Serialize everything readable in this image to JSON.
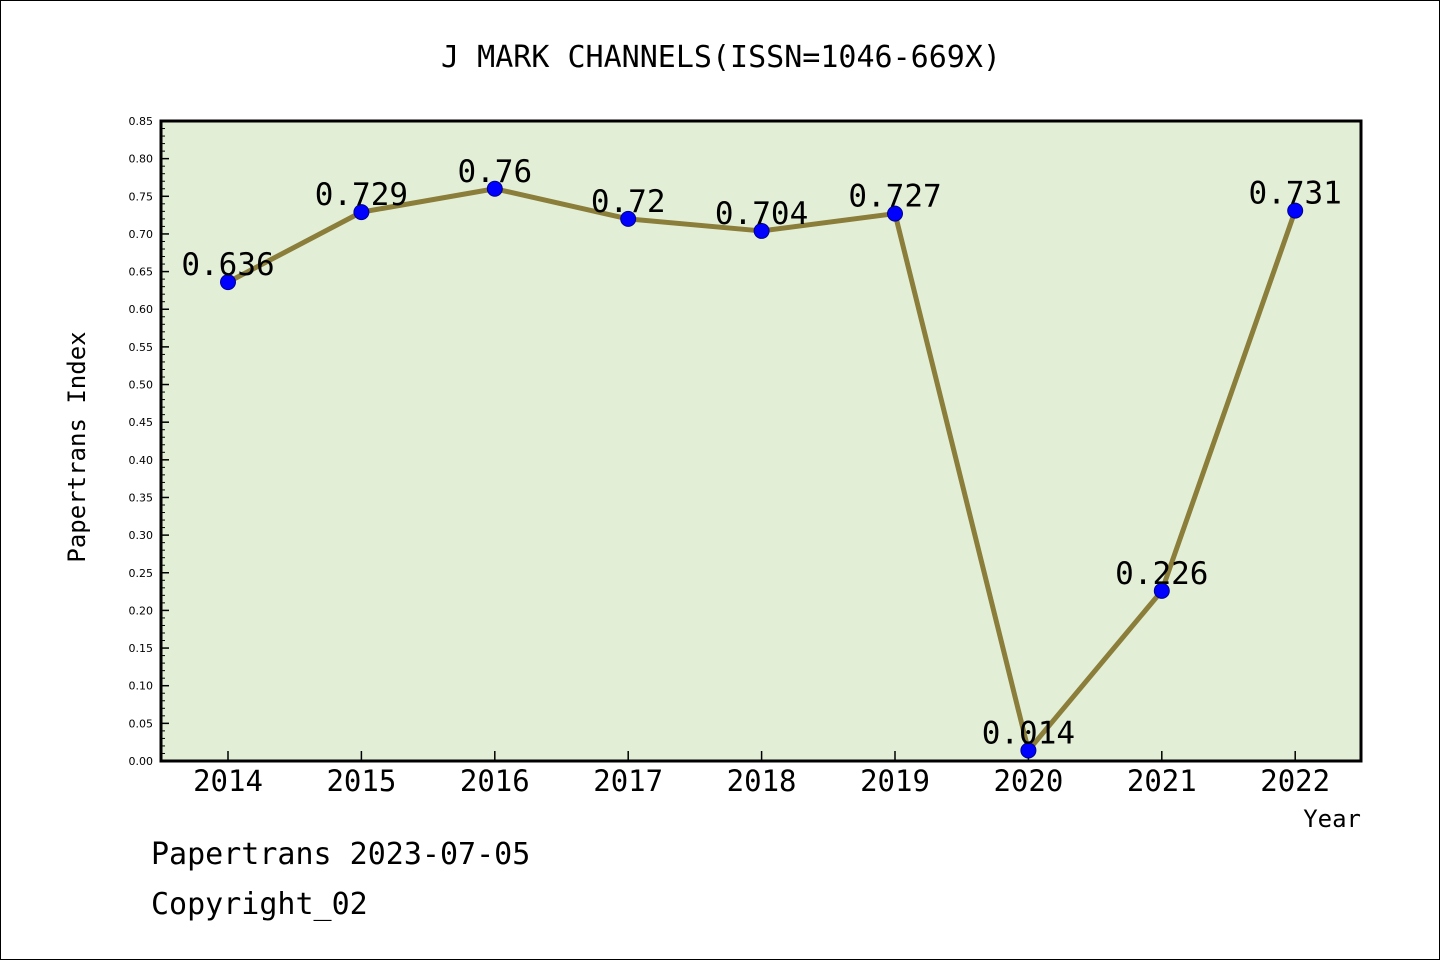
{
  "chart_data": {
    "type": "line",
    "title": "J MARK CHANNELS(ISSN=1046-669X)",
    "xlabel": "Year",
    "ylabel": "Papertrans Index",
    "categories": [
      "2014",
      "2015",
      "2016",
      "2017",
      "2018",
      "2019",
      "2020",
      "2021",
      "2022"
    ],
    "series": [
      {
        "values": [
          0.636,
          0.729,
          0.76,
          0.72,
          0.704,
          0.727,
          0.014,
          0.226,
          0.731
        ]
      }
    ],
    "data_labels": [
      "0.636",
      "0.729",
      "0.76",
      "0.72",
      "0.704",
      "0.727",
      "0.014",
      "0.226",
      "0.731"
    ],
    "ylim": [
      0,
      0.85
    ],
    "yticks": [
      "0.00",
      "0.05",
      "0.10",
      "0.15",
      "0.20",
      "0.25",
      "0.30",
      "0.35",
      "0.40",
      "0.45",
      "0.50",
      "0.55",
      "0.60",
      "0.65",
      "0.70",
      "0.75",
      "0.80",
      "0.85"
    ],
    "grid": false,
    "legend": "none",
    "colors": {
      "plot_background": "#e2efd6",
      "line": "#8b7d3a",
      "marker": "#0000ff"
    }
  },
  "footer": {
    "line1": "Papertrans 2023-07-05",
    "line2": "Copyright_02"
  }
}
